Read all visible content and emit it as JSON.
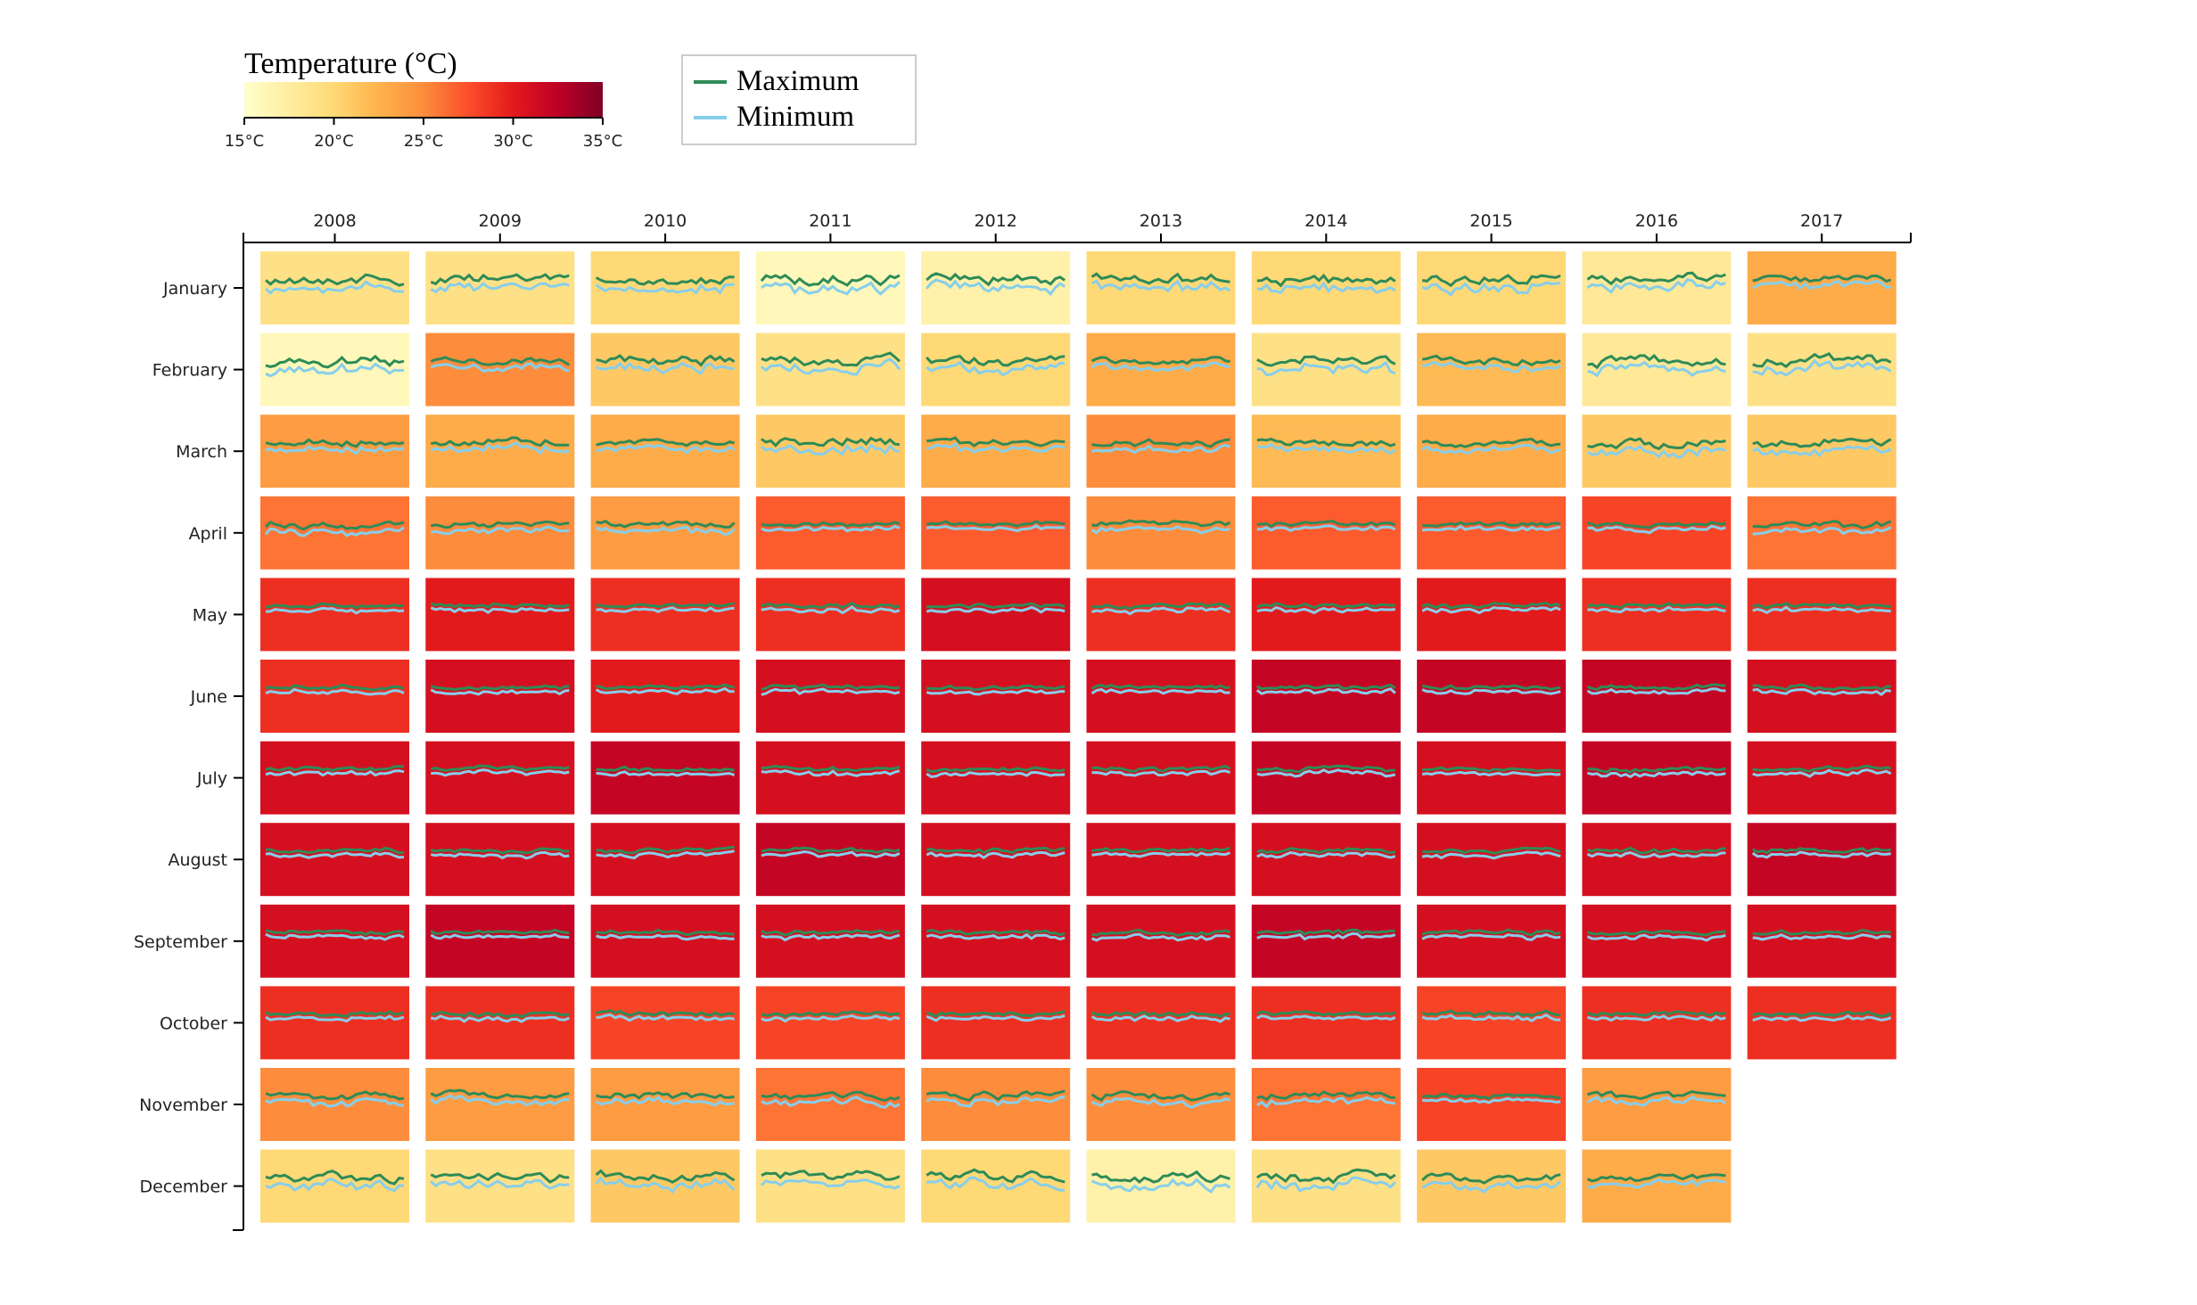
{
  "legend": {
    "colorbar_title": "Temperature (°C)",
    "colorbar_ticks": [
      "15°C",
      "20°C",
      "25°C",
      "30°C",
      "35°C"
    ],
    "lines": [
      {
        "label": "Maximum",
        "color": "#2e8b57"
      },
      {
        "label": "Minimum",
        "color": "#87ceeb"
      }
    ]
  },
  "chart_data": {
    "type": "heatmap",
    "colorscale": "YlOrRd",
    "color_range": [
      15,
      35
    ],
    "years": [
      "2008",
      "2009",
      "2010",
      "2011",
      "2012",
      "2013",
      "2014",
      "2015",
      "2016",
      "2017"
    ],
    "months": [
      "January",
      "February",
      "March",
      "April",
      "May",
      "June",
      "July",
      "August",
      "September",
      "October",
      "November",
      "December"
    ],
    "monthly_mean_temperature": [
      [
        19,
        19,
        20,
        16,
        17,
        20,
        20,
        20,
        18,
        23
      ],
      [
        16,
        25,
        21,
        19,
        20,
        23,
        19,
        22,
        18,
        19
      ],
      [
        24,
        23,
        23,
        21,
        23,
        25,
        22,
        23,
        21,
        21
      ],
      [
        26,
        25,
        24,
        27,
        27,
        25,
        27,
        27,
        28,
        26
      ],
      [
        29,
        30,
        29,
        29,
        31,
        29,
        30,
        30,
        29,
        29
      ],
      [
        29,
        31,
        30,
        31,
        31,
        31,
        32,
        32,
        32,
        31
      ],
      [
        31,
        31,
        32,
        31,
        31,
        31,
        32,
        31,
        32,
        31
      ],
      [
        31,
        31,
        31,
        32,
        31,
        31,
        31,
        31,
        31,
        32
      ],
      [
        31,
        32,
        31,
        31,
        31,
        31,
        32,
        31,
        31,
        31
      ],
      [
        29,
        29,
        28,
        28,
        29,
        29,
        29,
        28,
        29,
        29
      ],
      [
        25,
        24,
        24,
        26,
        25,
        25,
        26,
        28,
        24,
        null
      ],
      [
        20,
        19,
        21,
        19,
        20,
        17,
        19,
        21,
        23,
        null
      ]
    ],
    "series": [
      {
        "name": "Maximum",
        "color": "#2e8b57"
      },
      {
        "name": "Minimum",
        "color": "#87ceeb"
      }
    ]
  }
}
